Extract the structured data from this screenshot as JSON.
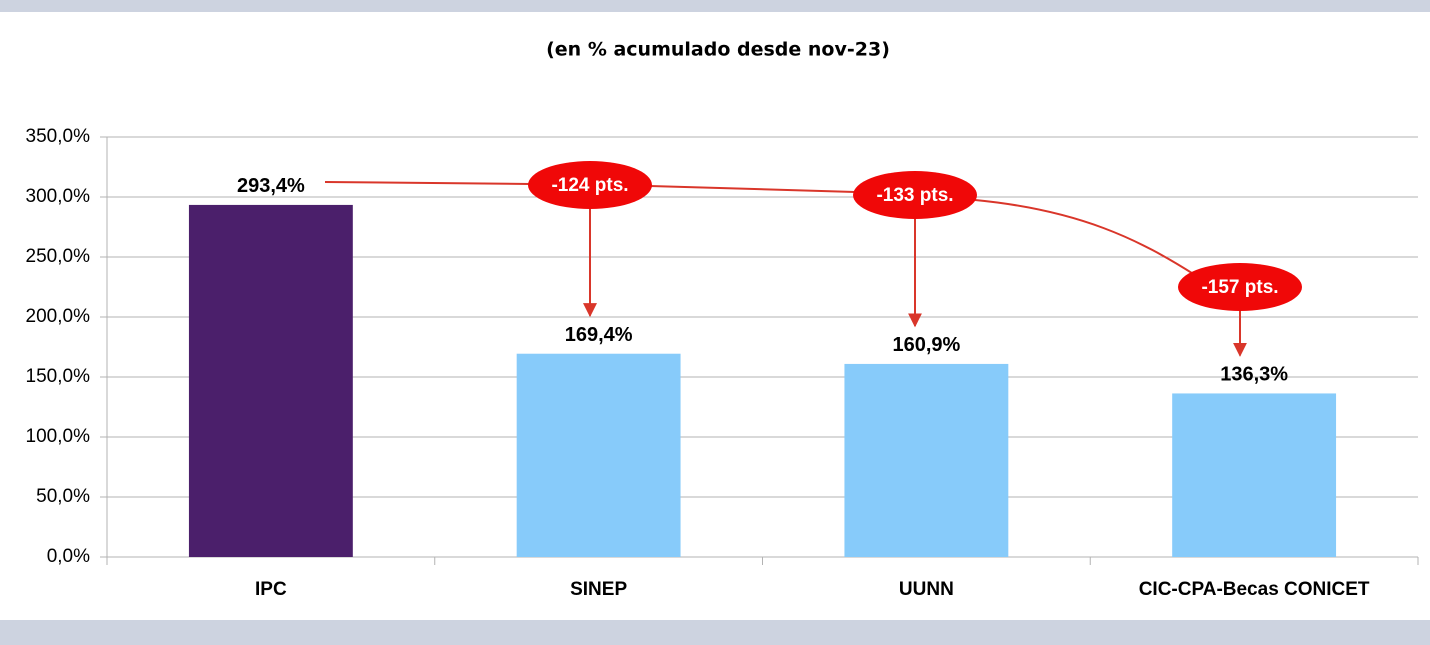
{
  "chart_data": {
    "type": "bar",
    "title": "(en % acumulado desde nov-23)",
    "categories": [
      "IPC",
      "SINEP",
      "UUNN",
      "CIC-CPA-Becas CONICET"
    ],
    "values": [
      293.4,
      169.4,
      160.9,
      136.3
    ],
    "value_labels": [
      "293,4%",
      "169,4%",
      "160,9%",
      "136,3%"
    ],
    "colors": [
      "#4b1f6b",
      "#87cbfa",
      "#87cbfa",
      "#87cbfa"
    ],
    "ylim": [
      0,
      350
    ],
    "yticks": [
      {
        "value": 0,
        "label": "0,0%"
      },
      {
        "value": 50,
        "label": "50,0%"
      },
      {
        "value": 100,
        "label": "100,0%"
      },
      {
        "value": 150,
        "label": "150,0%"
      },
      {
        "value": 200,
        "label": "200,0%"
      },
      {
        "value": 250,
        "label": "250,0%"
      },
      {
        "value": 300,
        "label": "300,0%"
      },
      {
        "value": 350,
        "label": "350,0%"
      }
    ],
    "grid": true,
    "annotations": [
      "-124 pts.",
      "-133 pts.",
      "-157 pts."
    ]
  }
}
